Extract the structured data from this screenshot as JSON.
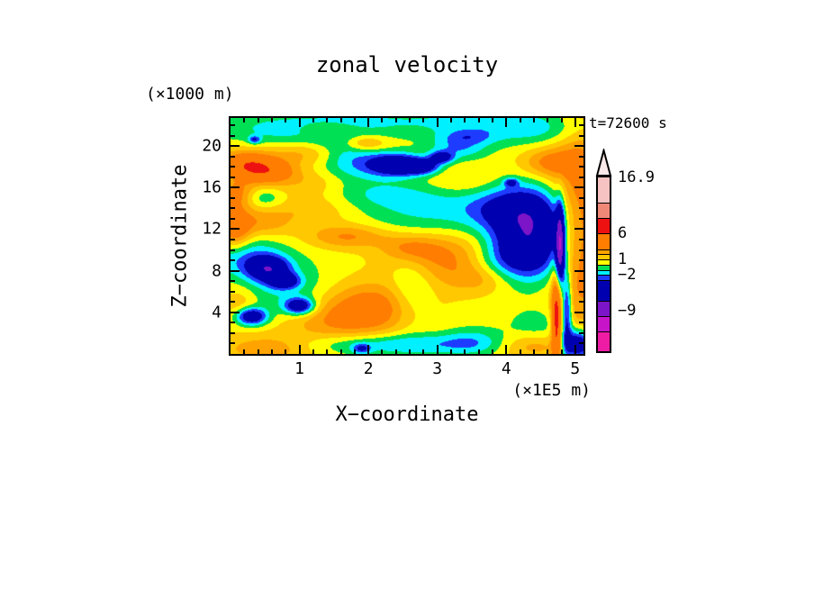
{
  "page": {
    "background": "#FFFFFF"
  },
  "chart_data": {
    "type": "filled_contour",
    "title": "zonal velocity",
    "time_annotation": "t=72600 s",
    "x_axis": {
      "label": "X−coordinate",
      "units": "(×1E5 m)",
      "range": [
        0,
        5.12
      ],
      "major_ticks": [
        {
          "v": 1,
          "label": "1"
        },
        {
          "v": 2,
          "label": "2"
        },
        {
          "v": 3,
          "label": "3"
        },
        {
          "v": 4,
          "label": "4"
        },
        {
          "v": 5,
          "label": "5"
        }
      ],
      "minor_step": 0.2
    },
    "z_axis": {
      "label": "Z−coordinate",
      "units": "(×1000 m)",
      "range": [
        0,
        22.7
      ],
      "major_ticks": [
        {
          "v": 4,
          "label": "4"
        },
        {
          "v": 8,
          "label": "8"
        },
        {
          "v": 12,
          "label": "12"
        },
        {
          "v": 16,
          "label": "16"
        },
        {
          "v": 20,
          "label": "20"
        }
      ],
      "minor_step": 1
    },
    "colorbar": {
      "value_range": [
        -16.8,
        16.9
      ],
      "levels": [
        -16.8,
        -13,
        -10,
        -7,
        -3,
        -2,
        -1,
        0,
        1,
        2,
        3,
        6,
        9,
        12,
        16.9
      ],
      "colors": [
        "#EE1CA4",
        "#C814C8",
        "#7C14C8",
        "#0000B0",
        "#1E3CFF",
        "#00F0FF",
        "#00E055",
        "#FFFF00",
        "#FFC800",
        "#FFA300",
        "#FF7D00",
        "#EE1111",
        "#F08878",
        "#F6C2C2"
      ],
      "over_color": "#FBE9E9",
      "labels": [
        {
          "value": 16.9,
          "text": "16.9"
        },
        {
          "value": 6,
          "text": "6"
        },
        {
          "value": 1,
          "text": "1"
        },
        {
          "value": -2,
          "text": "−2"
        },
        {
          "value": -9,
          "text": "−9"
        }
      ]
    },
    "field": {
      "description": "zonal velocity cross-section approximated as base value plus gaussian features [x, z, sigma_x, sigma_z, amplitude]",
      "base": 0.7,
      "gaussian_features": [
        [
          2.6,
          22.4,
          2.2,
          1.1,
          -1.6
        ],
        [
          0.9,
          21.2,
          0.7,
          1.0,
          -1.5
        ],
        [
          4.35,
          21.4,
          0.8,
          1.1,
          -1.5
        ],
        [
          3.45,
          20.9,
          0.25,
          0.5,
          -1.6
        ],
        [
          3.0,
          13.8,
          0.85,
          1.9,
          -1.9
        ],
        [
          2.3,
          15.4,
          0.55,
          1.0,
          -1.2
        ],
        [
          1.75,
          18.6,
          0.33,
          1.9,
          -2.4
        ],
        [
          0.2,
          9.3,
          0.4,
          1.3,
          -2.6
        ],
        [
          0.75,
          6.2,
          0.5,
          2.2,
          -1.8
        ],
        [
          2.4,
          0.9,
          1.1,
          0.75,
          -2.6
        ],
        [
          2.62,
          6.0,
          0.22,
          2.5,
          -1.7
        ],
        [
          3.5,
          1.3,
          0.32,
          1.0,
          -1.6
        ],
        [
          3.95,
          16.2,
          0.45,
          1.1,
          -1.3
        ],
        [
          0.45,
          15.0,
          0.22,
          0.7,
          -2.0
        ],
        [
          4.5,
          2.8,
          0.35,
          1.2,
          -1.3
        ],
        [
          2.4,
          18.2,
          0.28,
          0.75,
          -6.4
        ],
        [
          2.78,
          18.0,
          0.18,
          0.5,
          -4.2
        ],
        [
          3.06,
          18.9,
          0.12,
          0.4,
          -4.2
        ],
        [
          3.3,
          19.8,
          0.3,
          0.8,
          -2.4
        ],
        [
          4.35,
          11.3,
          0.38,
          2.6,
          -7.0
        ],
        [
          4.1,
          13.9,
          0.45,
          1.3,
          -2.6
        ],
        [
          3.95,
          9.0,
          0.4,
          1.4,
          -2.2
        ],
        [
          0.55,
          8.2,
          0.2,
          0.8,
          -5.5
        ],
        [
          0.78,
          7.0,
          0.15,
          0.5,
          -4.5
        ],
        [
          1.0,
          4.6,
          0.15,
          0.55,
          -5.5
        ],
        [
          0.3,
          3.6,
          0.16,
          0.6,
          -5.8
        ],
        [
          1.9,
          0.5,
          0.09,
          0.35,
          -2.8
        ],
        [
          5.03,
          0.9,
          0.16,
          1.0,
          -6.8
        ],
        [
          0.35,
          20.6,
          0.06,
          0.25,
          -3.2
        ],
        [
          4.07,
          16.5,
          0.07,
          0.28,
          -3.5
        ],
        [
          4.78,
          10.3,
          0.045,
          2.6,
          -9.5
        ],
        [
          4.73,
          3.2,
          0.05,
          3.0,
          6.5
        ],
        [
          4.88,
          4.5,
          0.05,
          2.6,
          -4.8
        ],
        [
          0.22,
          18.3,
          0.3,
          0.9,
          4.2
        ],
        [
          0.55,
          17.5,
          0.28,
          0.8,
          3.4
        ],
        [
          0.1,
          15.3,
          0.2,
          1.0,
          3.0
        ],
        [
          1.05,
          19.3,
          0.35,
          0.8,
          1.6
        ],
        [
          1.95,
          20.3,
          0.22,
          0.55,
          2.8
        ],
        [
          1.45,
          21.6,
          0.35,
          0.5,
          1.4
        ],
        [
          0.06,
          12.0,
          0.16,
          1.4,
          3.6
        ],
        [
          0.45,
          12.6,
          0.3,
          0.9,
          1.8
        ],
        [
          0.55,
          0.6,
          0.5,
          0.9,
          2.4
        ],
        [
          0.12,
          4.8,
          0.2,
          1.2,
          1.6
        ],
        [
          3.2,
          9.3,
          0.55,
          1.6,
          2.8
        ],
        [
          2.6,
          10.3,
          0.3,
          0.9,
          2.0
        ],
        [
          3.6,
          7.2,
          0.35,
          1.0,
          1.6
        ],
        [
          1.7,
          11.3,
          0.4,
          0.8,
          2.6
        ],
        [
          2.05,
          4.7,
          0.5,
          1.6,
          3.0
        ],
        [
          1.5,
          3.0,
          0.6,
          1.4,
          2.0
        ],
        [
          1.15,
          13.9,
          0.5,
          1.1,
          1.3
        ],
        [
          3.55,
          16.4,
          0.5,
          1.0,
          1.6
        ],
        [
          5.08,
          12.5,
          0.28,
          8.5,
          3.4
        ],
        [
          4.62,
          18.4,
          0.28,
          1.0,
          2.6
        ],
        [
          1.3,
          16.5,
          0.5,
          0.9,
          1.2
        ],
        [
          4.35,
          0.8,
          0.35,
          0.8,
          2.2
        ]
      ]
    }
  }
}
